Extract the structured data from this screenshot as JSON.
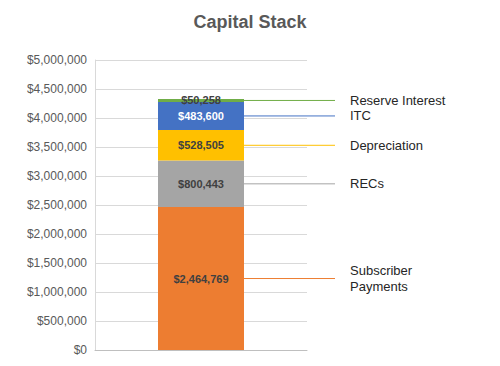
{
  "chart_data": {
    "type": "bar",
    "title": "Capital Stack",
    "categories": [
      null
    ],
    "series": [
      {
        "name": "Subscriber Payments",
        "color": "#ED7D31",
        "values": [
          2464769
        ],
        "value_labels": [
          "$2,464,769"
        ]
      },
      {
        "name": "RECs",
        "color": "#A5A5A5",
        "values": [
          800443
        ],
        "value_labels": [
          "$800,443"
        ]
      },
      {
        "name": "Depreciation",
        "color": "#FFC000",
        "values": [
          528505
        ],
        "value_labels": [
          "$528,505"
        ]
      },
      {
        "name": "ITC",
        "color": "#4472C4",
        "values": [
          483600
        ],
        "value_labels": [
          "$483,600"
        ]
      },
      {
        "name": "Reserve Interest",
        "color": "#70AD47",
        "values": [
          50258
        ],
        "value_labels": [
          "$50,258"
        ]
      }
    ],
    "ylim": [
      0,
      5000000
    ],
    "yticks": [
      {
        "value": 0,
        "label": "$0"
      },
      {
        "value": 500000,
        "label": "$500,000"
      },
      {
        "value": 1000000,
        "label": "$1,000,000"
      },
      {
        "value": 1500000,
        "label": "$1,500,000"
      },
      {
        "value": 2000000,
        "label": "$2,000,000"
      },
      {
        "value": 2500000,
        "label": "$2,500,000"
      },
      {
        "value": 3000000,
        "label": "$3,000,000"
      },
      {
        "value": 3500000,
        "label": "$3,500,000"
      },
      {
        "value": 4000000,
        "label": "$4,000,000"
      },
      {
        "value": 4500000,
        "label": "$4,500,000"
      },
      {
        "value": 5000000,
        "label": "$5,000,000"
      }
    ],
    "grid": true,
    "stacked": true,
    "data_labels": true,
    "tick_labels": "y"
  }
}
